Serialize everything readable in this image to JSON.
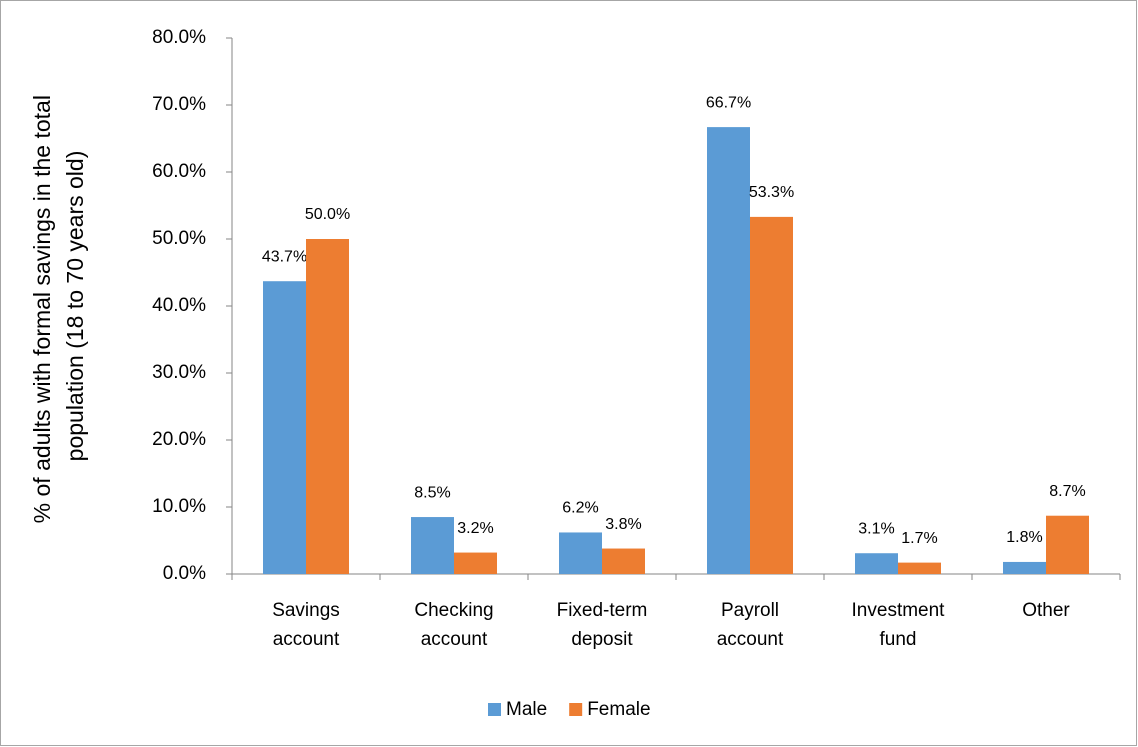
{
  "chart_data": {
    "type": "bar",
    "ylabel": [
      "% of adults with formal savings in the total",
      "population (18 to 70 years old)"
    ],
    "categories": [
      "Savings\naccount",
      "Checking\naccount",
      "Fixed-term\ndeposit",
      "Payroll\naccount",
      "Investment\nfund",
      "Other"
    ],
    "series": [
      {
        "name": "Male",
        "color": "#5b9bd5",
        "values": [
          43.7,
          8.5,
          6.2,
          66.7,
          3.1,
          1.8
        ],
        "value_labels": [
          "43.7%",
          "8.5%",
          "6.2%",
          "66.7%",
          "3.1%",
          "1.8%"
        ]
      },
      {
        "name": "Female",
        "color": "#ed7d31",
        "values": [
          50.0,
          3.2,
          3.8,
          53.3,
          1.7,
          8.7
        ],
        "value_labels": [
          "50.0%",
          "3.2%",
          "3.8%",
          "53.3%",
          "1.7%",
          "8.7%"
        ]
      }
    ],
    "ylim": [
      0,
      80
    ],
    "yticks": [
      {
        "value": 0,
        "label": "0.0%"
      },
      {
        "value": 10,
        "label": "10.0%"
      },
      {
        "value": 20,
        "label": "20.0%"
      },
      {
        "value": 30,
        "label": "30.0%"
      },
      {
        "value": 40,
        "label": "40.0%"
      },
      {
        "value": 50,
        "label": "50.0%"
      },
      {
        "value": 60,
        "label": "60.0%"
      },
      {
        "value": 70,
        "label": "70.0%"
      },
      {
        "value": 80,
        "label": "80.0%"
      }
    ],
    "grid": false,
    "legend": "bottom"
  }
}
